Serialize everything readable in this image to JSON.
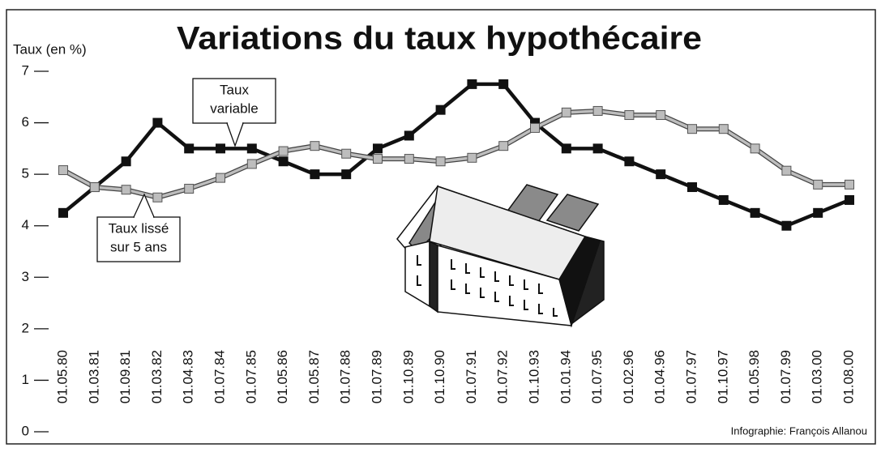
{
  "chart_data": {
    "type": "line",
    "title": "Variations du taux hypothécaire",
    "y_label": "Taux (en %)",
    "credit": "Infographie: François Allanou",
    "categories": [
      "01.05.80",
      "01.03.81",
      "01.09.81",
      "01.03.82",
      "01.04.83",
      "01.07.84",
      "01.07.85",
      "01.05.86",
      "01.05.87",
      "01.07.88",
      "01.07.89",
      "01.10.89",
      "01.10.90",
      "01.07.91",
      "01.07.92",
      "01.10.93",
      "01.01.94",
      "01.07.95",
      "01.02.96",
      "01.04.96",
      "01.07.97",
      "01.10.97",
      "01.05.98",
      "01.07.99",
      "01.03.00",
      "01.08.00"
    ],
    "series": [
      {
        "color": "#111111",
        "values": [
          4.25,
          4.75,
          5.25,
          6.0,
          5.5,
          5.5,
          5.5,
          5.25,
          5.0,
          5.0,
          5.5,
          5.75,
          6.25,
          6.75,
          6.75,
          6.0,
          5.5,
          5.5,
          5.25,
          5.0,
          4.75,
          4.5,
          4.25,
          4.0,
          4.25,
          4.5
        ]
      },
      {
        "color": "#bdbdbd",
        "values": [
          5.08,
          4.75,
          4.7,
          4.55,
          4.72,
          4.93,
          5.2,
          5.45,
          5.55,
          5.4,
          5.3,
          5.3,
          5.25,
          5.32,
          5.55,
          5.9,
          6.2,
          6.23,
          6.15,
          6.15,
          5.88,
          5.88,
          5.5,
          5.07,
          4.8,
          4.8
        ]
      }
    ],
    "annotations": [
      {
        "lines": [
          "Taux",
          "variable"
        ]
      },
      {
        "lines": [
          "Taux lissé",
          "sur 5 ans"
        ]
      }
    ],
    "ylim": [
      0,
      7
    ],
    "yticks": [
      0,
      1,
      2,
      3,
      4,
      5,
      6,
      7
    ],
    "grid": false
  }
}
